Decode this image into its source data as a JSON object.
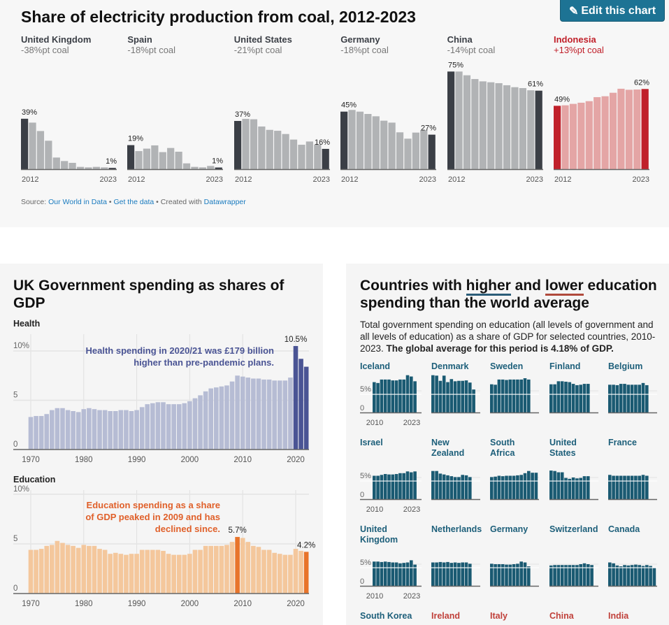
{
  "top_chart": {
    "title": "Share of electricity production from coal, 2012-2023",
    "edit_button": {
      "icon": "pencil-icon",
      "glyph": "✎",
      "label": "Edit this chart"
    },
    "source": {
      "prefix": "Source: ",
      "link1": "Our World in Data",
      "sep1": " • ",
      "link2": "Get the data",
      "sep2": " • Created with ",
      "link3": "Datawrapper"
    },
    "colors": {
      "dark": "#3b3f46",
      "grey": "#b1b3b5",
      "red": "#c0202a",
      "light_red": "#e4a5a5"
    }
  },
  "chart_data": [
    {
      "type": "bar",
      "title": "Share of electricity production from coal, 2012-2023",
      "x_start_label": "2012",
      "x_end_label": "2023",
      "ylim": [
        0,
        80
      ],
      "unit": "%",
      "countries": [
        {
          "name": "United Kingdom",
          "change": "-38%pt coal",
          "highlight": false,
          "first_label": "39%",
          "last_label": "1%",
          "values": [
            39,
            36,
            29.5,
            22,
            9,
            6.3,
            4.9,
            1.8,
            1.4,
            1.8,
            1.4,
            1
          ]
        },
        {
          "name": "Spain",
          "change": "-18%pt coal",
          "highlight": false,
          "first_label": "19%",
          "last_label": "1%",
          "values": [
            18.6,
            14,
            15.9,
            18.4,
            13.2,
            16.4,
            13.5,
            4.5,
            1.8,
            1.4,
            2.5,
            1.3
          ]
        },
        {
          "name": "United States",
          "change": "-21%pt coal",
          "highlight": false,
          "first_label": "37%",
          "last_label": "16%",
          "values": [
            37.3,
            38.9,
            38.6,
            33,
            30.4,
            29.7,
            27.2,
            22.9,
            18.9,
            21.4,
            19.1,
            15.7
          ]
        },
        {
          "name": "Germany",
          "change": "-18%pt coal",
          "highlight": false,
          "first_label": "45%",
          "last_label": "27%",
          "values": [
            44.5,
            45.8,
            44.5,
            42.7,
            40.9,
            37.5,
            36,
            28.5,
            23.6,
            28.3,
            30.3,
            26.7
          ]
        },
        {
          "name": "China",
          "change": "-14%pt coal",
          "highlight": false,
          "first_label": "75%",
          "last_label": "61%",
          "values": [
            75.5,
            75.5,
            72.6,
            69.7,
            67.9,
            67.2,
            66.5,
            64.9,
            63.4,
            62.7,
            61,
            60.7
          ]
        },
        {
          "name": "Indonesia",
          "change": "+13%pt coal",
          "highlight": true,
          "first_label": "49%",
          "last_label": "62%",
          "values": [
            49,
            49.4,
            50.5,
            51.4,
            52.6,
            55.7,
            56.4,
            59.1,
            62.2,
            61.4,
            61.6,
            62
          ]
        }
      ]
    },
    {
      "type": "bar",
      "title": "UK Government spending as shares of GDP",
      "panels": [
        {
          "name": "Health",
          "color": "#b6bcd4",
          "highlight_color": "#4a5494",
          "annotation_color": "#4a5494",
          "x_start": 1970,
          "values": [
            3.3,
            3.4,
            3.4,
            3.6,
            4.0,
            4.2,
            4.2,
            4.0,
            3.9,
            3.8,
            4.1,
            4.2,
            4.1,
            4.0,
            4.0,
            3.9,
            3.9,
            4.0,
            4.0,
            3.9,
            4.0,
            4.3,
            4.6,
            4.7,
            4.8,
            4.8,
            4.6,
            4.6,
            4.6,
            4.7,
            4.9,
            5.2,
            5.5,
            5.9,
            6.2,
            6.3,
            6.4,
            6.5,
            6.9,
            7.5,
            7.4,
            7.3,
            7.2,
            7.2,
            7.1,
            7.1,
            7.0,
            7.0,
            7.0,
            7.3,
            10.5,
            9.2,
            8.4
          ],
          "highlight_years": [
            2020,
            2021,
            2022
          ],
          "value_labels": [
            {
              "year": 2020,
              "text": "10.5%"
            }
          ],
          "annotation": [
            "Health spending in 2020/21 was £179 billion",
            "higher than pre-pandemic plans."
          ],
          "y_ticks": [
            {
              "v": 0,
              "label": "0"
            },
            {
              "v": 5,
              "label": "5"
            },
            {
              "v": 10,
              "label": "10%"
            }
          ],
          "x_ticks": [
            "1970",
            "1980",
            "1990",
            "2000",
            "2010",
            "2020"
          ],
          "ylim": [
            0,
            11
          ]
        },
        {
          "name": "Education",
          "color": "#f4c79c",
          "highlight_color": "#e8742a",
          "annotation_color": "#e0602a",
          "x_start": 1970,
          "values": [
            4.4,
            4.4,
            4.5,
            4.8,
            4.9,
            5.3,
            5.1,
            4.9,
            4.8,
            4.6,
            4.9,
            4.8,
            4.8,
            4.5,
            4.4,
            4.0,
            4.1,
            4.0,
            3.9,
            4.0,
            4.0,
            4.4,
            4.4,
            4.4,
            4.4,
            4.3,
            4.0,
            3.9,
            3.9,
            3.9,
            4.0,
            4.4,
            4.4,
            4.8,
            4.8,
            4.8,
            4.8,
            4.9,
            5.2,
            5.7,
            5.6,
            5.2,
            4.8,
            4.7,
            4.4,
            4.4,
            4.1,
            4.0,
            3.9,
            3.9,
            4.5,
            4.3,
            4.2
          ],
          "highlight_years": [
            2009,
            2022
          ],
          "value_labels": [
            {
              "year": 2009,
              "text": "5.7%"
            },
            {
              "year": 2022,
              "text": "4.2%"
            }
          ],
          "annotation": [
            "Education spending as a share",
            "of GDP peaked in 2009 and has",
            "declined since."
          ],
          "y_ticks": [
            {
              "v": 0,
              "label": "0"
            },
            {
              "v": 5,
              "label": "5"
            },
            {
              "v": 10,
              "label": "10%"
            }
          ],
          "x_ticks": [
            "1970",
            "1980",
            "1990",
            "2000",
            "2010",
            "2020"
          ],
          "ylim": [
            0,
            10
          ]
        }
      ]
    },
    {
      "type": "bar",
      "title_parts": [
        "Countries with ",
        "higher",
        " and ",
        "lower",
        " education spending than the world average"
      ],
      "description": "Total government spending on education (all levels of government and all levels of education) as a share of GDP for selected countries, 2010-2023. ",
      "description_bold": "The global average for this period is 4.18% of GDP.",
      "global_average": 4.18,
      "bar_color": "#1a5a72",
      "higher_color": "#1d5f7a",
      "lower_color": "#c0403a",
      "y_tick_labels": [
        "5%",
        "0"
      ],
      "x_tick_labels": [
        "2010",
        "2023"
      ],
      "countries": [
        {
          "name": "Iceland",
          "group": "higher",
          "values": [
            7.0,
            6.8,
            7.6,
            7.6,
            7.6,
            7.4,
            7.4,
            7.6,
            7.6,
            8.6,
            8.3,
            7.2
          ]
        },
        {
          "name": "Denmark",
          "group": "higher",
          "values": [
            8.6,
            8.5,
            7.3,
            8.5,
            7.0,
            7.7,
            7.2,
            7.3,
            7.3,
            7.4,
            6.9,
            5.3
          ]
        },
        {
          "name": "Sweden",
          "group": "higher",
          "values": [
            6.5,
            6.4,
            7.6,
            7.6,
            7.5,
            7.6,
            7.6,
            7.6,
            7.6,
            7.9,
            7.6
          ]
        },
        {
          "name": "Finland",
          "group": "higher",
          "values": [
            6.5,
            6.5,
            7.2,
            7.2,
            7.1,
            7.0,
            6.6,
            6.3,
            6.4,
            6.6,
            6.6
          ]
        },
        {
          "name": "Belgium",
          "group": "higher",
          "values": [
            6.4,
            6.4,
            6.3,
            6.6,
            6.6,
            6.4,
            6.4,
            6.4,
            6.4,
            6.8,
            6.3
          ]
        },
        {
          "name": "Israel",
          "group": "higher",
          "values": [
            5.4,
            5.4,
            5.6,
            5.8,
            5.7,
            5.7,
            5.8,
            6.0,
            6.0,
            6.4,
            6.2,
            6.4
          ]
        },
        {
          "name": "New Zealand",
          "group": "higher",
          "values": [
            6.5,
            6.5,
            5.9,
            5.7,
            5.5,
            5.3,
            5.1,
            5.1,
            5.6,
            5.5,
            5.1
          ]
        },
        {
          "name": "South Africa",
          "group": "higher",
          "values": [
            5.1,
            5.2,
            5.4,
            5.3,
            5.4,
            5.4,
            5.4,
            5.5,
            5.6,
            6.0,
            6.5,
            6.1,
            6.1
          ]
        },
        {
          "name": "United States",
          "group": "higher",
          "values": [
            6.6,
            6.5,
            6.2,
            6.2,
            4.9,
            4.7,
            5.0,
            4.8,
            4.9,
            5.3,
            5.3
          ]
        },
        {
          "name": "France",
          "group": "higher",
          "values": [
            5.6,
            5.4,
            5.4,
            5.4,
            5.4,
            5.4,
            5.4,
            5.4,
            5.4,
            5.6,
            5.4
          ]
        },
        {
          "name": "United Kingdom",
          "group": "higher",
          "values": [
            5.6,
            5.6,
            5.5,
            5.6,
            5.5,
            5.4,
            5.4,
            5.2,
            5.3,
            5.4,
            5.9,
            4.9
          ]
        },
        {
          "name": "Netherlands",
          "group": "higher",
          "values": [
            5.4,
            5.4,
            5.5,
            5.4,
            5.5,
            5.3,
            5.4,
            5.3,
            5.4,
            5.4,
            5.1
          ]
        },
        {
          "name": "Germany",
          "group": "higher",
          "values": [
            5.1,
            5.0,
            5.0,
            5.0,
            4.9,
            4.9,
            5.0,
            5.1,
            5.6,
            5.4,
            4.5
          ]
        },
        {
          "name": "Switzerland",
          "group": "higher",
          "values": [
            4.7,
            4.8,
            4.8,
            4.8,
            4.8,
            4.8,
            4.8,
            4.8,
            5.0,
            5.2,
            5.0,
            4.8
          ]
        },
        {
          "name": "Canada",
          "group": "higher",
          "values": [
            5.4,
            5.2,
            4.7,
            4.5,
            4.8,
            4.7,
            4.8,
            4.9,
            4.8,
            4.6,
            4.8,
            4.6,
            4.1
          ]
        },
        {
          "name": "South Korea",
          "group": "higher",
          "values": []
        },
        {
          "name": "Ireland",
          "group": "lower",
          "values": []
        },
        {
          "name": "Italy",
          "group": "lower",
          "values": []
        },
        {
          "name": "China",
          "group": "lower",
          "values": []
        },
        {
          "name": "India",
          "group": "lower",
          "values": []
        }
      ]
    }
  ]
}
